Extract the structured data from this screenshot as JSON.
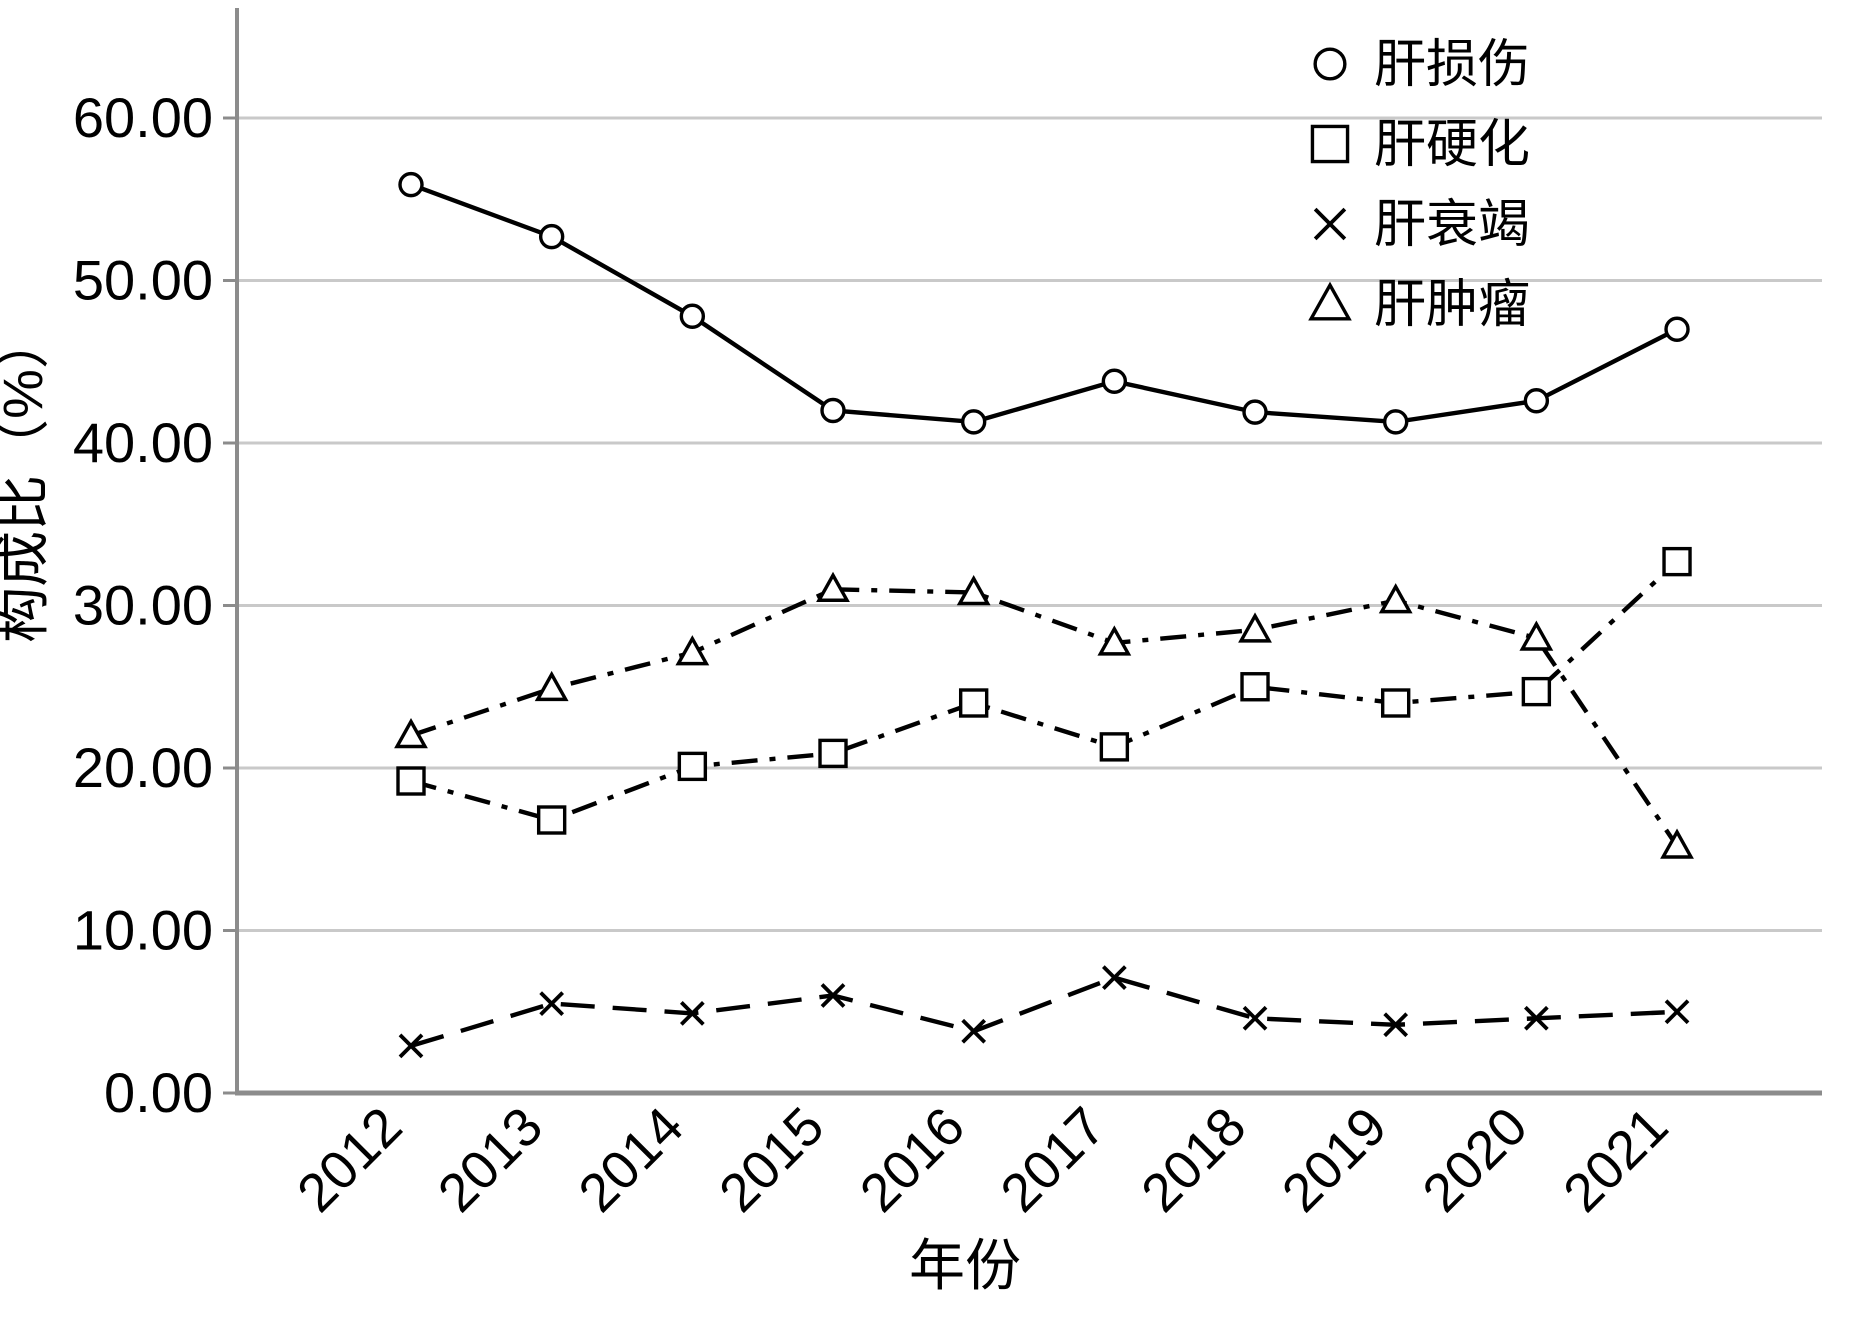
{
  "chart_data": {
    "type": "line",
    "title": "",
    "x": {
      "label": "年份",
      "categories": [
        "2012",
        "2013",
        "2014",
        "2015",
        "2016",
        "2017",
        "2018",
        "2019",
        "2020",
        "2021"
      ]
    },
    "y": {
      "label": "构成比（%）",
      "min": 0,
      "max": 60,
      "tick_step": 10,
      "tick_labels": [
        "0.00",
        "10.00",
        "20.00",
        "30.00",
        "40.00",
        "50.00",
        "60.00"
      ]
    },
    "grid": "horizontal",
    "legend_position": "top-right-inside",
    "series": [
      {
        "name": "肝损伤",
        "marker": "circle",
        "line": "solid",
        "color": "#000000",
        "values": [
          55.9,
          52.7,
          47.8,
          42.0,
          41.3,
          43.8,
          41.9,
          41.3,
          42.6,
          47.0
        ]
      },
      {
        "name": "肝硬化",
        "marker": "square",
        "line": "dash-dot",
        "color": "#000000",
        "values": [
          19.2,
          16.8,
          20.1,
          20.9,
          24.0,
          21.3,
          25.0,
          24.0,
          24.7,
          32.7
        ]
      },
      {
        "name": "肝衰竭",
        "marker": "x",
        "line": "dashed",
        "color": "#000000",
        "values": [
          2.9,
          5.5,
          4.9,
          6.0,
          3.8,
          7.1,
          4.6,
          4.2,
          4.6,
          5.0
        ]
      },
      {
        "name": "肝肿瘤",
        "marker": "triangle",
        "line": "dash-dot",
        "color": "#000000",
        "values": [
          22.0,
          24.9,
          27.1,
          31.0,
          30.8,
          27.7,
          28.5,
          30.3,
          28.0,
          15.2
        ]
      }
    ],
    "colors": {
      "grid": "#c9c9c9",
      "axis": "#8c8c8c",
      "series": "#000000"
    }
  }
}
